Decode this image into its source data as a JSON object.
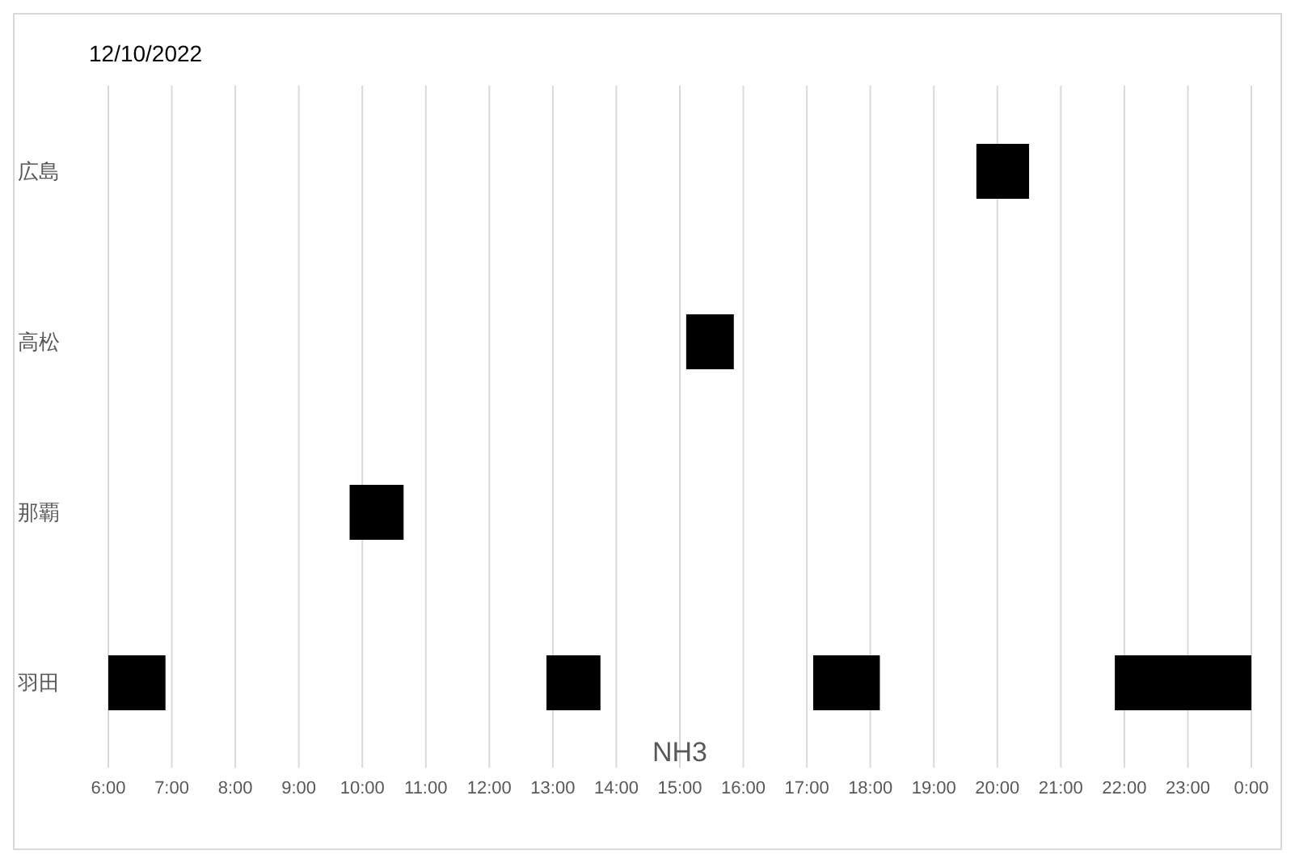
{
  "chart_data": {
    "type": "bar",
    "orientation": "horizontal",
    "title": "12/10/2022",
    "xlabel": "NH3",
    "categories": [
      "広島",
      "高松",
      "那覇",
      "羽田"
    ],
    "series": [
      {
        "color": "#000000",
        "base": [
          19.67,
          15.1,
          9.8,
          6
        ],
        "values": [
          0.83,
          0.75,
          0.85,
          0.9
        ]
      },
      {
        "color": "#000000",
        "base": [
          null,
          null,
          null,
          12.9
        ],
        "values": [
          null,
          null,
          null,
          0.85
        ]
      },
      {
        "color": "#000000",
        "base": [
          null,
          null,
          null,
          17.1
        ],
        "values": [
          null,
          null,
          null,
          1.05
        ]
      },
      {
        "color": "#000000",
        "base": [
          null,
          null,
          null,
          21.85
        ],
        "values": [
          null,
          null,
          null,
          2.15
        ]
      }
    ],
    "xlim": [
      6,
      24
    ],
    "xticks": [
      {
        "value": 6,
        "label": "6:00"
      },
      {
        "value": 7,
        "label": "7:00"
      },
      {
        "value": 8,
        "label": "8:00"
      },
      {
        "value": 9,
        "label": "9:00"
      },
      {
        "value": 10,
        "label": "10:00"
      },
      {
        "value": 11,
        "label": "11:00"
      },
      {
        "value": 12,
        "label": "12:00"
      },
      {
        "value": 13,
        "label": "13:00"
      },
      {
        "value": 14,
        "label": "14:00"
      },
      {
        "value": 15,
        "label": "15:00"
      },
      {
        "value": 16,
        "label": "16:00"
      },
      {
        "value": 17,
        "label": "17:00"
      },
      {
        "value": 18,
        "label": "18:00"
      },
      {
        "value": 19,
        "label": "19:00"
      },
      {
        "value": 20,
        "label": "20:00"
      },
      {
        "value": 21,
        "label": "21:00"
      },
      {
        "value": 22,
        "label": "22:00"
      },
      {
        "value": 23,
        "label": "23:00"
      },
      {
        "value": 24,
        "label": "0:00"
      }
    ],
    "grid": "x"
  }
}
